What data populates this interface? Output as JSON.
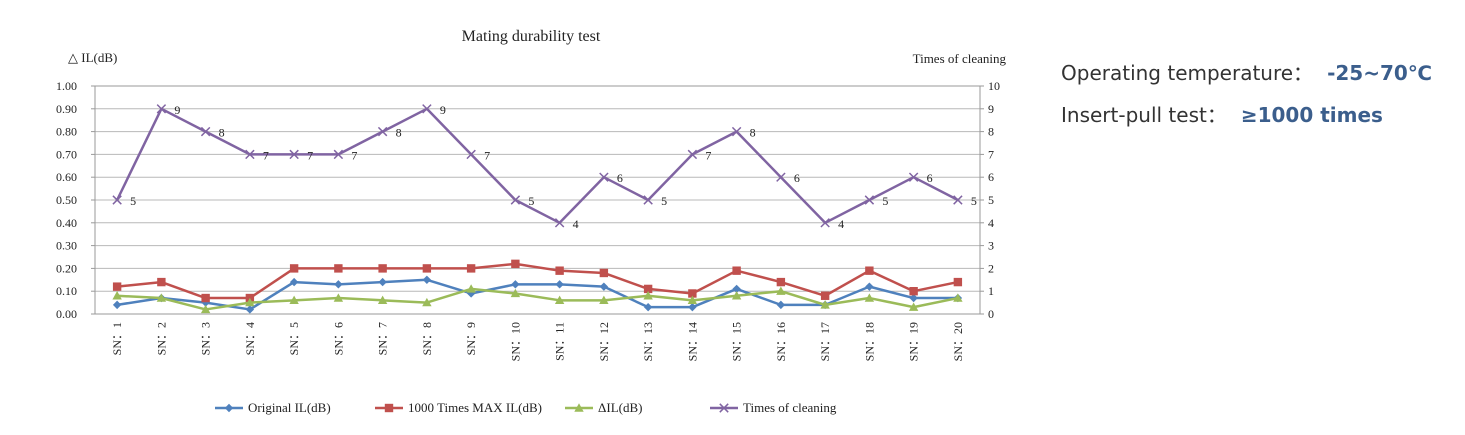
{
  "chart_data": {
    "type": "line",
    "title": "Mating durability test",
    "ylabel_left": "△ IL(dB)",
    "ylabel_right": "Times of cleaning",
    "ylim_left": [
      0,
      1.0
    ],
    "ylim_right": [
      0,
      10
    ],
    "yticks_left": [
      "0.00",
      "0.10",
      "0.20",
      "0.30",
      "0.40",
      "0.50",
      "0.60",
      "0.70",
      "0.80",
      "0.90",
      "1.00"
    ],
    "yticks_right": [
      "0",
      "1",
      "2",
      "3",
      "4",
      "5",
      "6",
      "7",
      "8",
      "9",
      "10"
    ],
    "grid": true,
    "legend_position": "bottom",
    "categories": [
      "SN：1",
      "SN：2",
      "SN：3",
      "SN：4",
      "SN：5",
      "SN：6",
      "SN：7",
      "SN：8",
      "SN：9",
      "SN：10",
      "SN：11",
      "SN：12",
      "SN：13",
      "SN：14",
      "SN：15",
      "SN：16",
      "SN：17",
      "SN：18",
      "SN：19",
      "SN：20"
    ],
    "series": [
      {
        "name": "Original IL(dB)",
        "axis": "left",
        "color": "#4f81bd",
        "marker": "diamond",
        "values": [
          0.04,
          0.07,
          0.05,
          0.02,
          0.14,
          0.13,
          0.14,
          0.15,
          0.09,
          0.13,
          0.13,
          0.12,
          0.03,
          0.03,
          0.11,
          0.04,
          0.04,
          0.12,
          0.07,
          0.07
        ]
      },
      {
        "name": "1000 Times MAX IL(dB)",
        "axis": "left",
        "color": "#c0504d",
        "marker": "square",
        "values": [
          0.12,
          0.14,
          0.07,
          0.07,
          0.2,
          0.2,
          0.2,
          0.2,
          0.2,
          0.22,
          0.19,
          0.18,
          0.11,
          0.09,
          0.19,
          0.14,
          0.08,
          0.19,
          0.1,
          0.14
        ]
      },
      {
        "name": "ΔIL(dB)",
        "axis": "left",
        "color": "#9bbb59",
        "marker": "triangle",
        "values": [
          0.08,
          0.07,
          0.02,
          0.05,
          0.06,
          0.07,
          0.06,
          0.05,
          0.11,
          0.09,
          0.06,
          0.06,
          0.08,
          0.06,
          0.08,
          0.1,
          0.04,
          0.07,
          0.03,
          0.07
        ]
      },
      {
        "name": "Times of cleaning",
        "axis": "right",
        "color": "#8064a2",
        "marker": "x",
        "data_labels": true,
        "values": [
          5,
          9,
          8,
          7,
          7,
          7,
          8,
          9,
          7,
          5,
          4,
          6,
          5,
          7,
          8,
          6,
          4,
          5,
          6,
          5
        ]
      }
    ]
  },
  "specs": [
    {
      "label": "Operating temperature：",
      "value": "-25~70℃"
    },
    {
      "label": "Insert-pull test：",
      "value": "≥1000 times"
    }
  ]
}
